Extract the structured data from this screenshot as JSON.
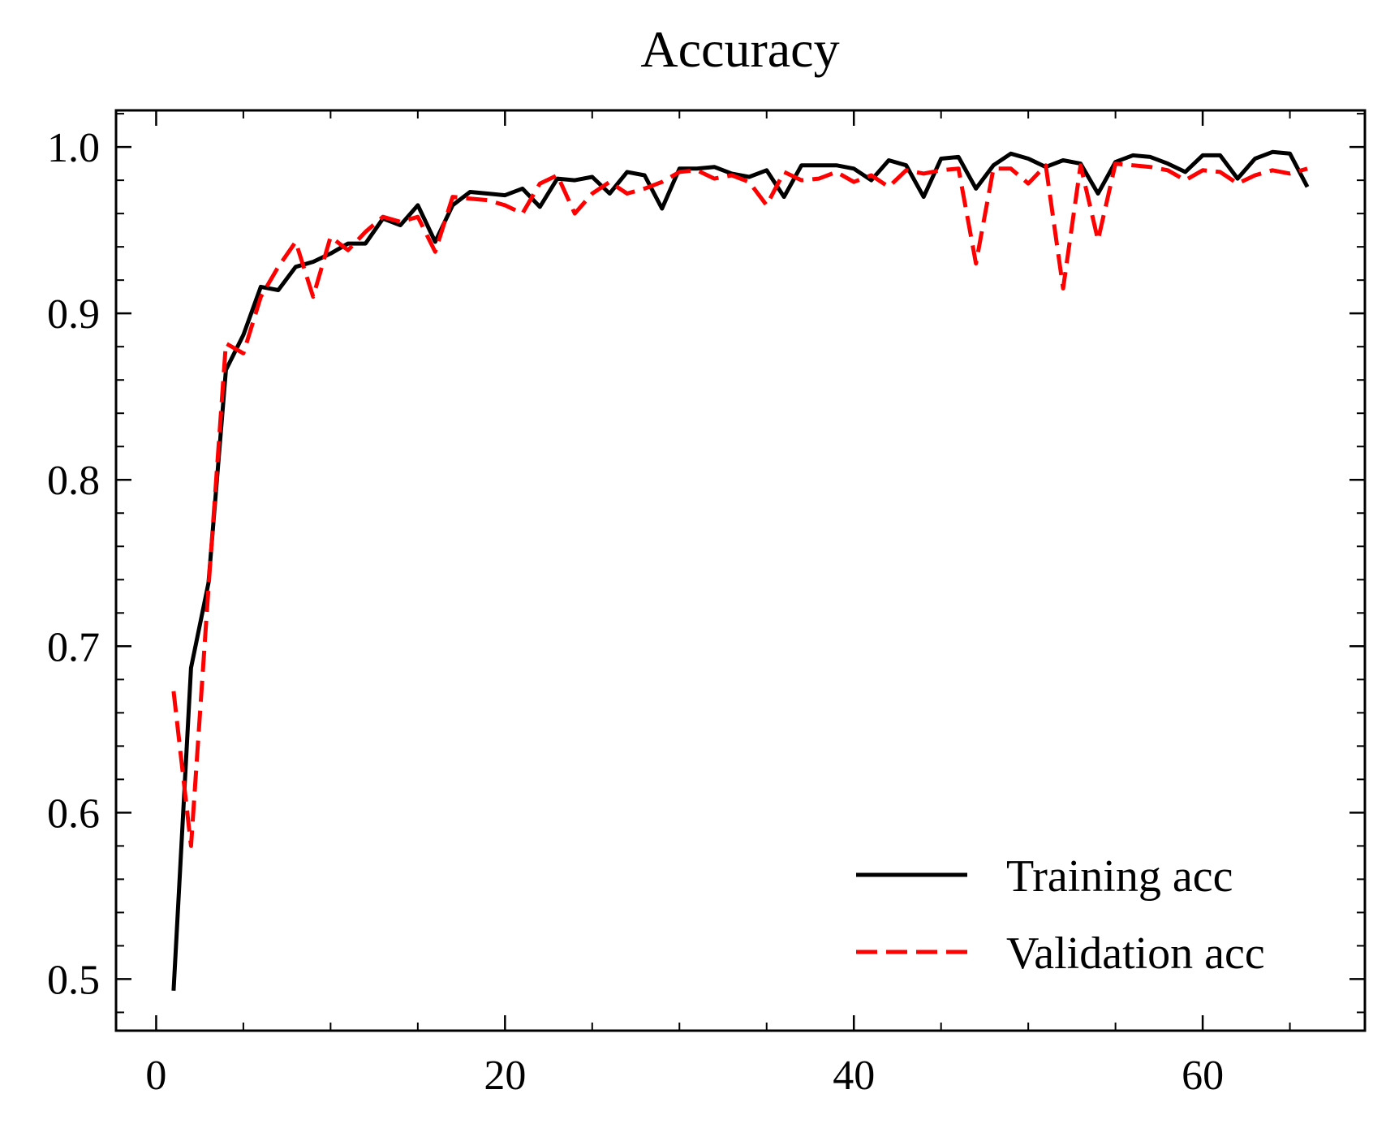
{
  "chart_data": {
    "type": "line",
    "title": "Accuracy",
    "xlabel": "",
    "ylabel": "",
    "xlim": [
      -2.3,
      69.3
    ],
    "ylim": [
      0.469,
      1.022
    ],
    "xticks": [
      0,
      20,
      40,
      60
    ],
    "xtick_labels": [
      "0",
      "20",
      "40",
      "60"
    ],
    "yticks": [
      0.5,
      0.6,
      0.7,
      0.8,
      0.9,
      1.0
    ],
    "ytick_labels": [
      "0.5",
      "0.6",
      "0.7",
      "0.8",
      "0.9",
      "1.0"
    ],
    "grid": false,
    "legend_position": "lower-right",
    "series": [
      {
        "name": "Training acc",
        "color": "#000000",
        "style": "solid",
        "x": [
          1,
          2,
          3,
          4,
          5,
          6,
          7,
          8,
          9,
          10,
          11,
          12,
          13,
          14,
          15,
          16,
          17,
          18,
          19,
          20,
          21,
          22,
          23,
          24,
          25,
          26,
          27,
          28,
          29,
          30,
          31,
          32,
          33,
          34,
          35,
          36,
          37,
          38,
          39,
          40,
          41,
          42,
          43,
          44,
          45,
          46,
          47,
          48,
          49,
          50,
          51,
          52,
          53,
          54,
          55,
          56,
          57,
          58,
          59,
          60,
          61,
          62,
          63,
          64,
          65,
          66
        ],
        "y": [
          0.493,
          0.687,
          0.738,
          0.866,
          0.887,
          0.916,
          0.914,
          0.928,
          0.931,
          0.936,
          0.942,
          0.942,
          0.957,
          0.953,
          0.965,
          0.943,
          0.965,
          0.973,
          0.972,
          0.971,
          0.975,
          0.964,
          0.981,
          0.98,
          0.982,
          0.972,
          0.985,
          0.983,
          0.963,
          0.987,
          0.987,
          0.988,
          0.984,
          0.982,
          0.986,
          0.97,
          0.989,
          0.989,
          0.989,
          0.987,
          0.98,
          0.992,
          0.989,
          0.97,
          0.993,
          0.994,
          0.975,
          0.989,
          0.996,
          0.993,
          0.988,
          0.992,
          0.99,
          0.972,
          0.991,
          0.995,
          0.994,
          0.99,
          0.985,
          0.995,
          0.995,
          0.981,
          0.993,
          0.997,
          0.996,
          0.976
        ]
      },
      {
        "name": "Validation acc",
        "color": "#ff0000",
        "style": "dashed",
        "x": [
          1,
          2,
          3,
          4,
          5,
          6,
          7,
          8,
          9,
          10,
          11,
          12,
          13,
          14,
          15,
          16,
          17,
          18,
          19,
          20,
          21,
          22,
          23,
          24,
          25,
          26,
          27,
          28,
          29,
          30,
          31,
          32,
          33,
          34,
          35,
          36,
          37,
          38,
          39,
          40,
          41,
          42,
          43,
          44,
          45,
          46,
          47,
          48,
          49,
          50,
          51,
          52,
          53,
          54,
          55,
          56,
          57,
          58,
          59,
          60,
          61,
          62,
          63,
          64,
          65,
          66
        ],
        "y": [
          0.673,
          0.58,
          0.735,
          0.882,
          0.876,
          0.91,
          0.928,
          0.943,
          0.91,
          0.946,
          0.938,
          0.949,
          0.958,
          0.955,
          0.958,
          0.937,
          0.97,
          0.969,
          0.968,
          0.965,
          0.96,
          0.978,
          0.983,
          0.96,
          0.972,
          0.979,
          0.972,
          0.975,
          0.979,
          0.985,
          0.986,
          0.981,
          0.983,
          0.979,
          0.965,
          0.985,
          0.98,
          0.981,
          0.985,
          0.979,
          0.983,
          0.976,
          0.986,
          0.984,
          0.986,
          0.987,
          0.93,
          0.987,
          0.987,
          0.978,
          0.989,
          0.915,
          0.989,
          0.944,
          0.99,
          0.989,
          0.988,
          0.986,
          0.98,
          0.986,
          0.985,
          0.978,
          0.983,
          0.986,
          0.984,
          0.987
        ]
      }
    ]
  }
}
